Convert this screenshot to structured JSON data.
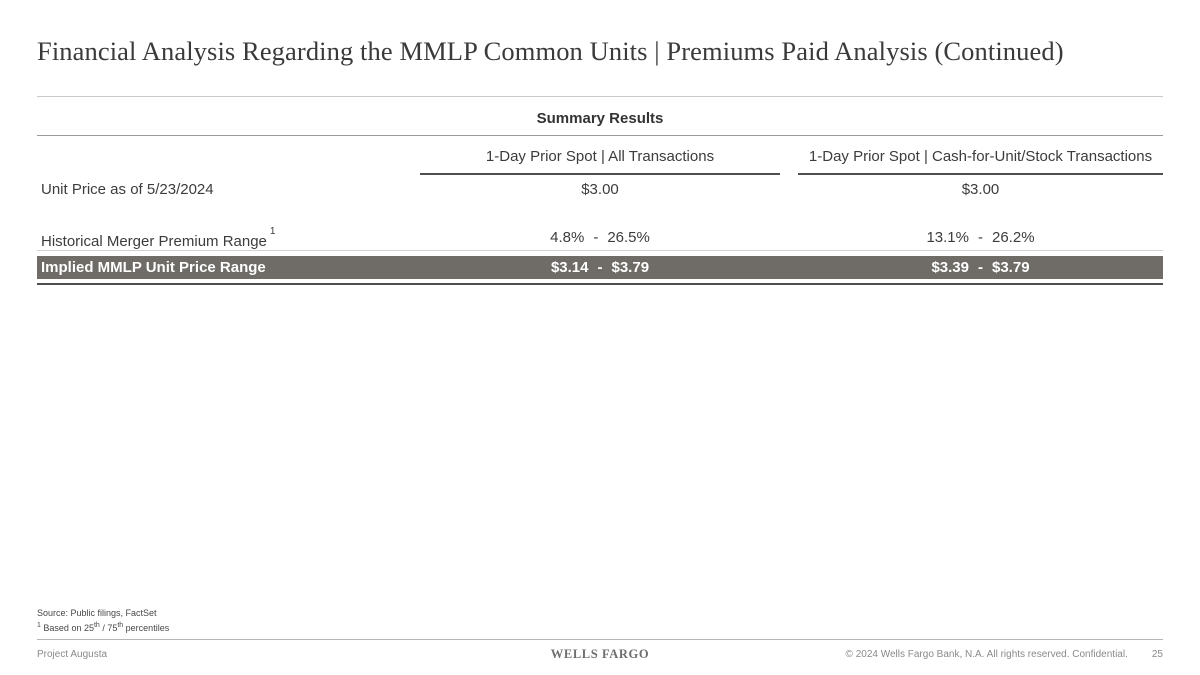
{
  "slide": {
    "title": "Financial Analysis Regarding the MMLP Common Units | Premiums Paid Analysis (Continued)"
  },
  "table": {
    "section_title": "Summary Results",
    "dash": "-",
    "columns": [
      "1-Day Prior Spot | All Transactions",
      "1-Day Prior Spot | Cash-for-Unit/Stock Transactions"
    ],
    "rows": {
      "unit_price": {
        "label": "Unit Price as of 5/23/2024",
        "all_transactions": "$3.00",
        "cash_stock": "$3.00"
      },
      "premium_range": {
        "label": "Historical Merger Premium Range",
        "footnote_ref": "1",
        "all_low": "4.8%",
        "all_high": "26.5%",
        "cash_low": "13.1%",
        "cash_high": "26.2%"
      },
      "implied_price": {
        "label": "Implied MMLP Unit Price Range",
        "all_low": "$3.14",
        "all_high": "$3.79",
        "cash_low": "$3.39",
        "cash_high": "$3.79"
      }
    }
  },
  "footnotes": {
    "source": "Source: Public filings, FactSet",
    "note1": {
      "ref": "1",
      "text_a": "Based on 25",
      "sup_a": "th",
      "text_b": " / 75",
      "sup_b": "th",
      "text_c": " percentiles"
    }
  },
  "footer": {
    "project": "Project Augusta",
    "brand": "WELLS FARGO",
    "copyright": "© 2024 Wells Fargo Bank, N.A. All rights reserved. Confidential.",
    "page_number": "25"
  },
  "colors": {
    "highlight_row_bg": "#6f6b66",
    "highlight_row_text": "#ffffff",
    "rule_dark": "#4f4f4f",
    "rule_light": "#c9c9c9",
    "title_text": "#3a3a3a"
  }
}
